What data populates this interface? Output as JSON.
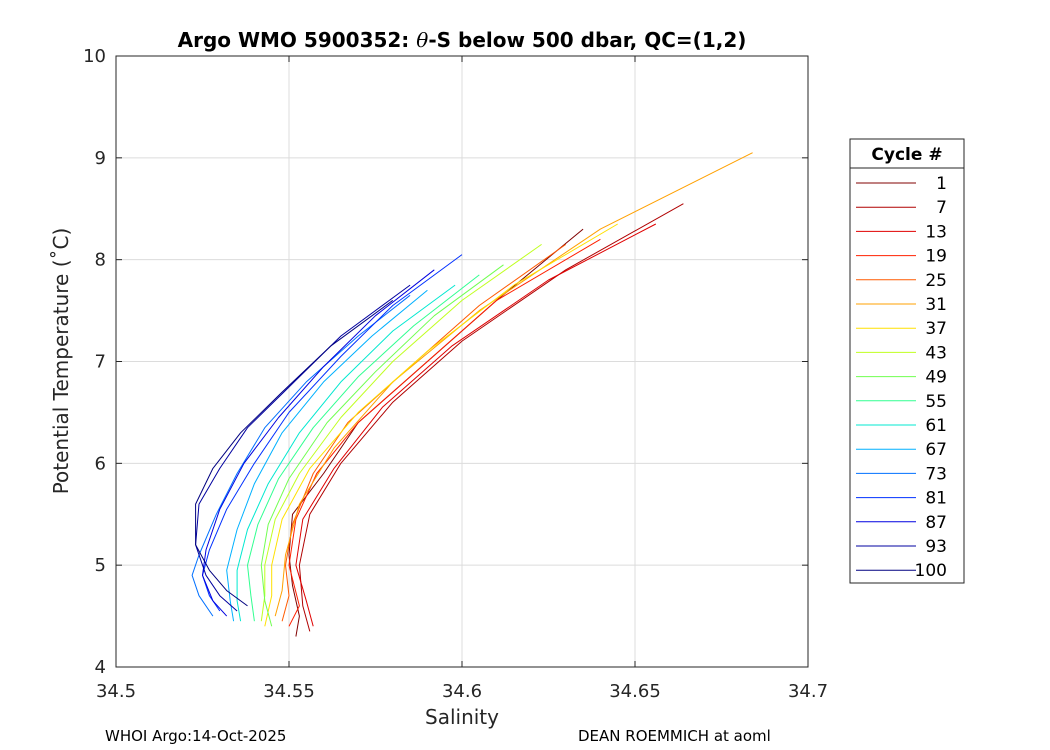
{
  "title_prefix": "Argo WMO 5900352: ",
  "title_theta": "θ",
  "title_suffix": "-S below 500 dbar,  QC=(1,2)",
  "footer_left": "WHOI Argo:14-Oct-2025",
  "footer_right": "DEAN ROEMMICH at aoml",
  "chart_data": {
    "type": "line",
    "xlabel": "Salinity",
    "ylabel": "Potential Temperature (˚C)",
    "xlim": [
      34.5,
      34.7
    ],
    "ylim": [
      4,
      10
    ],
    "xticks": [
      "34.5",
      "34.55",
      "34.6",
      "34.65",
      "34.7"
    ],
    "yticks": [
      "4",
      "5",
      "6",
      "7",
      "8",
      "9",
      "10"
    ],
    "grid": true,
    "legend": {
      "title": "Cycle #",
      "placement": "right-outside",
      "entries": [
        {
          "label": "1",
          "color": "#800000"
        },
        {
          "label": "7",
          "color": "#b00000"
        },
        {
          "label": "13",
          "color": "#e00000"
        },
        {
          "label": "19",
          "color": "#ff2000"
        },
        {
          "label": "25",
          "color": "#ff5a00"
        },
        {
          "label": "31",
          "color": "#ffa000"
        },
        {
          "label": "37",
          "color": "#ffe000"
        },
        {
          "label": "43",
          "color": "#c0ff20"
        },
        {
          "label": "49",
          "color": "#70ff50"
        },
        {
          "label": "55",
          "color": "#30ff90"
        },
        {
          "label": "61",
          "color": "#00e8d0"
        },
        {
          "label": "67",
          "color": "#00b0ff"
        },
        {
          "label": "73",
          "color": "#0070ff"
        },
        {
          "label": "81",
          "color": "#0030ff"
        },
        {
          "label": "87",
          "color": "#0000e0"
        },
        {
          "label": "93",
          "color": "#0000a0"
        },
        {
          "label": "100",
          "color": "#000080"
        }
      ]
    },
    "series": [
      {
        "cycle": "1",
        "color": "#800000",
        "x": [
          34.635,
          34.61,
          34.59,
          34.57,
          34.56,
          34.551,
          34.55,
          34.551,
          34.553,
          34.552
        ],
        "y": [
          8.3,
          7.6,
          7.0,
          6.4,
          5.9,
          5.5,
          5.1,
          4.8,
          4.5,
          4.3
        ]
      },
      {
        "cycle": "7",
        "color": "#b00000",
        "x": [
          34.664,
          34.63,
          34.6,
          34.58,
          34.565,
          34.556,
          34.553,
          34.554,
          34.556
        ],
        "y": [
          8.55,
          7.9,
          7.2,
          6.6,
          6.0,
          5.5,
          5.0,
          4.6,
          4.35
        ]
      },
      {
        "cycle": "13",
        "color": "#e00000",
        "x": [
          34.656,
          34.625,
          34.597,
          34.577,
          34.563,
          34.554,
          34.552,
          34.555,
          34.557
        ],
        "y": [
          8.35,
          7.8,
          7.15,
          6.55,
          5.95,
          5.45,
          5.0,
          4.65,
          4.4
        ]
      },
      {
        "cycle": "19",
        "color": "#ff2000",
        "x": [
          34.64,
          34.61,
          34.59,
          34.57,
          34.558,
          34.552,
          34.55,
          34.553,
          34.55
        ],
        "y": [
          8.2,
          7.6,
          7.0,
          6.4,
          5.9,
          5.45,
          5.0,
          4.6,
          4.4
        ]
      },
      {
        "cycle": "25",
        "color": "#ff5a00",
        "x": [
          34.63,
          34.605,
          34.585,
          34.567,
          34.557,
          34.551,
          34.549,
          34.55,
          34.548
        ],
        "y": [
          8.15,
          7.55,
          6.95,
          6.4,
          5.9,
          5.4,
          5.0,
          4.7,
          4.45
        ]
      },
      {
        "cycle": "31",
        "color": "#ffa000",
        "x": [
          34.684,
          34.64,
          34.605,
          34.58,
          34.563,
          34.553,
          34.549,
          34.548,
          34.546
        ],
        "y": [
          9.05,
          8.3,
          7.5,
          6.8,
          6.15,
          5.6,
          5.1,
          4.75,
          4.5
        ]
      },
      {
        "cycle": "37",
        "color": "#ffe000",
        "x": [
          34.645,
          34.615,
          34.59,
          34.57,
          34.556,
          34.548,
          34.545,
          34.545,
          34.543
        ],
        "y": [
          8.35,
          7.75,
          7.1,
          6.5,
          5.95,
          5.45,
          5.0,
          4.7,
          4.4
        ]
      },
      {
        "cycle": "43",
        "color": "#c0ff20",
        "x": [
          34.623,
          34.6,
          34.58,
          34.565,
          34.553,
          34.546,
          34.543,
          34.543,
          34.542
        ],
        "y": [
          8.15,
          7.6,
          7.0,
          6.45,
          5.9,
          5.45,
          5.0,
          4.7,
          4.45
        ]
      },
      {
        "cycle": "49",
        "color": "#70ff50",
        "x": [
          34.612,
          34.592,
          34.575,
          34.561,
          34.55,
          34.544,
          34.542,
          34.543,
          34.545
        ],
        "y": [
          7.95,
          7.45,
          6.9,
          6.4,
          5.85,
          5.4,
          5.0,
          4.65,
          4.4
        ]
      },
      {
        "cycle": "55",
        "color": "#30ff90",
        "x": [
          34.605,
          34.586,
          34.57,
          34.557,
          34.547,
          34.541,
          34.538,
          34.539,
          34.54
        ],
        "y": [
          7.85,
          7.35,
          6.85,
          6.35,
          5.85,
          5.4,
          5.0,
          4.7,
          4.45
        ]
      },
      {
        "cycle": "61",
        "color": "#00e8d0",
        "x": [
          34.598,
          34.58,
          34.565,
          34.553,
          34.544,
          34.538,
          34.535,
          34.535,
          34.536
        ],
        "y": [
          7.75,
          7.3,
          6.8,
          6.3,
          5.8,
          5.35,
          4.95,
          4.65,
          4.45
        ]
      },
      {
        "cycle": "67",
        "color": "#00b0ff",
        "x": [
          34.59,
          34.574,
          34.56,
          34.548,
          34.54,
          34.535,
          34.532,
          34.533,
          34.534
        ],
        "y": [
          7.7,
          7.25,
          6.8,
          6.3,
          5.8,
          5.35,
          4.95,
          4.65,
          4.45
        ]
      },
      {
        "cycle": "73",
        "color": "#0070ff",
        "x": [
          34.585,
          34.57,
          34.555,
          34.543,
          34.535,
          34.529,
          34.524,
          34.522,
          34.524,
          34.528
        ],
        "y": [
          7.65,
          7.25,
          6.8,
          6.35,
          5.9,
          5.5,
          5.1,
          4.9,
          4.7,
          4.5
        ]
      },
      {
        "cycle": "81",
        "color": "#0030ff",
        "x": [
          34.6,
          34.58,
          34.565,
          34.55,
          34.54,
          34.532,
          34.527,
          34.525,
          34.527,
          34.53
        ],
        "y": [
          8.05,
          7.55,
          7.05,
          6.5,
          6.0,
          5.55,
          5.15,
          4.9,
          4.7,
          4.55
        ]
      },
      {
        "cycle": "87",
        "color": "#0000e0",
        "x": [
          34.592,
          34.575,
          34.56,
          34.547,
          34.537,
          34.53,
          34.526,
          34.525,
          34.528,
          34.532
        ],
        "y": [
          7.9,
          7.45,
          6.95,
          6.45,
          6.0,
          5.55,
          5.15,
          4.9,
          4.65,
          4.5
        ]
      },
      {
        "cycle": "93",
        "color": "#0000a0",
        "x": [
          34.585,
          34.565,
          34.55,
          34.538,
          34.53,
          34.524,
          34.523,
          34.526,
          34.53,
          34.535
        ],
        "y": [
          7.75,
          7.25,
          6.75,
          6.35,
          5.95,
          5.6,
          5.2,
          4.9,
          4.7,
          4.55
        ]
      },
      {
        "cycle": "100",
        "color": "#000080",
        "x": [
          34.58,
          34.562,
          34.548,
          34.536,
          34.528,
          34.523,
          34.523,
          34.527,
          34.532,
          34.538
        ],
        "y": [
          7.6,
          7.15,
          6.7,
          6.3,
          5.95,
          5.6,
          5.2,
          4.95,
          4.75,
          4.6
        ]
      }
    ]
  }
}
